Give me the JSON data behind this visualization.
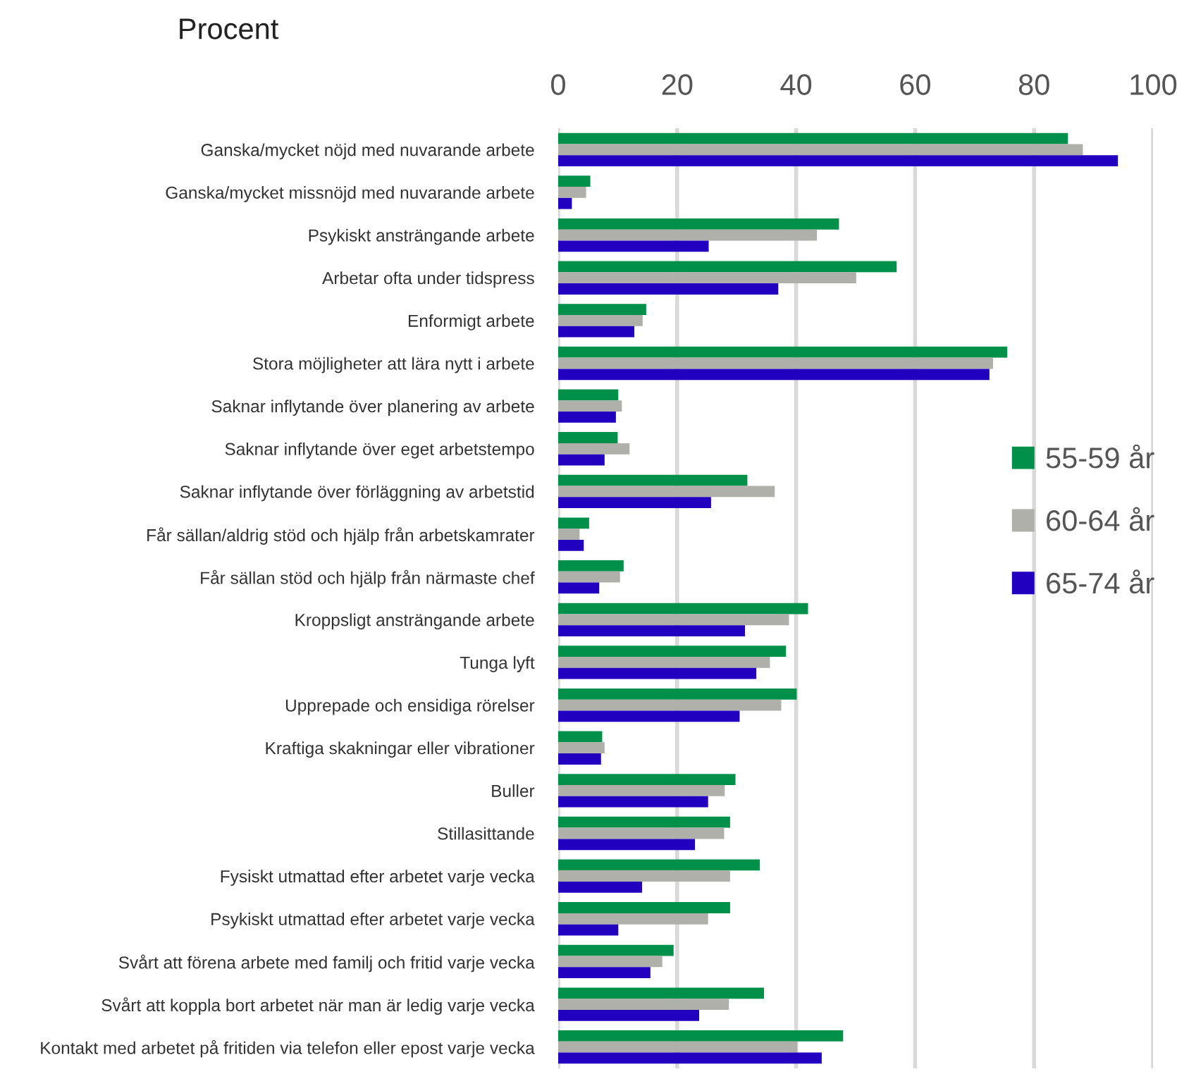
{
  "chart_data": {
    "type": "bar",
    "orientation": "horizontal",
    "xlabel": "Procent",
    "categories": [
      "Ganska/mycket nöjd med nuvarande arbete",
      "Ganska/mycket missnöjd med nuvarande arbete",
      "Psykiskt ansträngande arbete",
      "Arbetar ofta under tidspress",
      "Enformigt arbete",
      "Stora möjligheter att lära nytt i arbete",
      "Saknar inflytande över planering av arbete",
      "Saknar inflytande över eget arbetstempo",
      "Saknar inflytande över förläggning av arbetstid",
      "Får sällan/aldrig stöd och hjälp från arbetskamrater",
      "Får sällan stöd och hjälp från närmaste chef",
      "Kroppsligt ansträngande arbete",
      "Tunga lyft",
      "Upprepade och ensidiga rörelser",
      "Kraftiga skakningar eller vibrationer",
      "Buller",
      "Stillasittande",
      "Fysiskt utmattad efter arbetet varje vecka",
      "Psykiskt utmattad efter arbetet varje vecka",
      "Svårt att förena arbete med familj och fritid varje vecka",
      "Svårt att koppla bort arbetet när man är ledig varje vecka",
      "Kontakt med arbetet på fritiden via telefon eller epost varje vecka"
    ],
    "series": [
      {
        "name": "55-59 år",
        "color": "#00904a",
        "values": [
          85.7,
          5.4,
          47.2,
          56.9,
          14.8,
          75.5,
          10.1,
          10.0,
          31.8,
          5.2,
          11.0,
          42.0,
          38.3,
          40.1,
          7.4,
          29.8,
          28.9,
          33.9,
          28.9,
          19.4,
          34.6,
          47.9
        ]
      },
      {
        "name": "60-64 år",
        "color": "#b0b0aa",
        "values": [
          88.2,
          4.7,
          43.5,
          50.1,
          14.2,
          73.1,
          10.7,
          12.0,
          36.4,
          3.6,
          10.4,
          38.8,
          35.6,
          37.5,
          7.8,
          28.0,
          27.9,
          28.9,
          25.2,
          17.5,
          28.7,
          40.2
        ]
      },
      {
        "name": "65-74 år",
        "color": "#2200c0",
        "values": [
          94.1,
          2.3,
          25.3,
          37.0,
          12.8,
          72.5,
          9.7,
          7.8,
          25.7,
          4.3,
          6.9,
          31.4,
          33.3,
          30.5,
          7.2,
          25.2,
          23.0,
          14.1,
          10.1,
          15.5,
          23.7,
          44.3
        ]
      }
    ],
    "xlim": [
      0,
      100
    ],
    "xticks": [
      0,
      20,
      40,
      60,
      80,
      100
    ],
    "grid": "x",
    "legend": "right"
  }
}
